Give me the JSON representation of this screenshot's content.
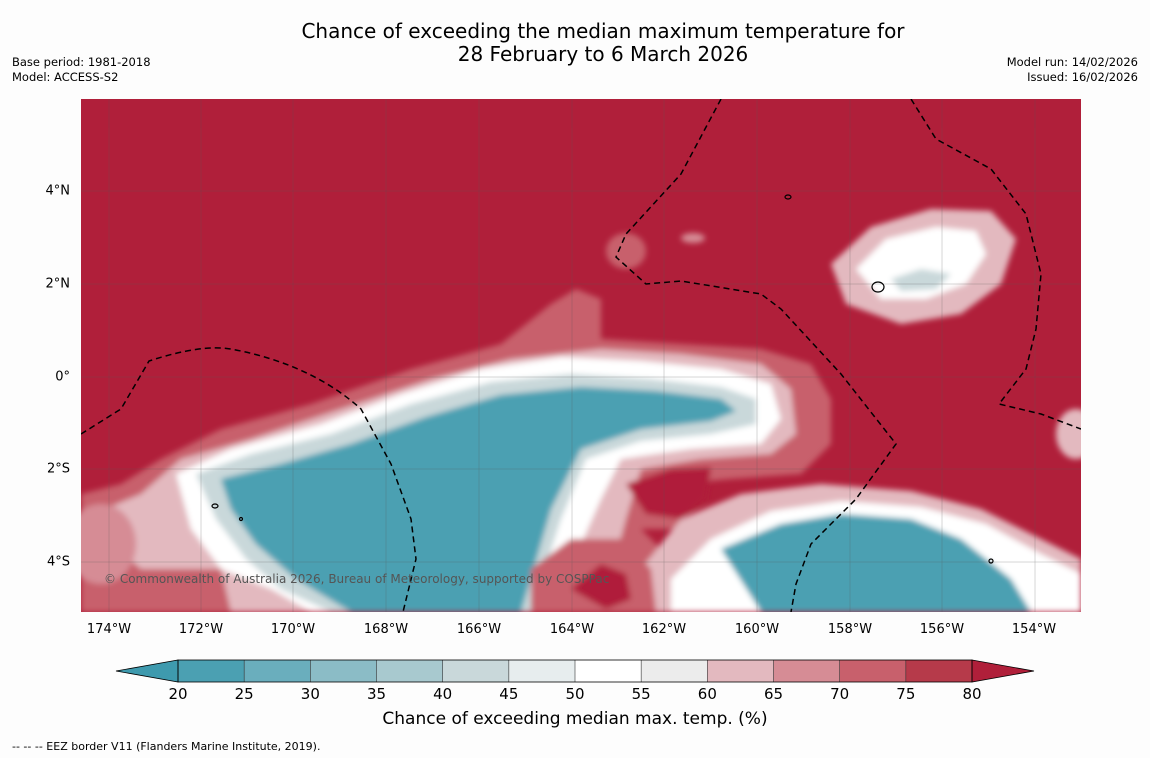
{
  "title_line1": "Chance of exceeding the median maximum temperature for",
  "title_line2": "28 February to 6 March 2026",
  "base_period": "Base period: 1981-2018",
  "model": "Model: ACCESS-S2",
  "model_run": "Model run: 14/02/2026",
  "issued": "Issued: 16/02/2026",
  "copyright": "© Commonwealth of Australia 2026, Bureau of Meteorology, supported by COSPPac",
  "lat_labels": [
    "4°N",
    "2°N",
    "0°",
    "2°S",
    "4°S"
  ],
  "lon_labels": [
    "174°W",
    "172°W",
    "170°W",
    "168°W",
    "166°W",
    "164°W",
    "162°W",
    "160°W",
    "158°W",
    "156°W",
    "154°W"
  ],
  "colorbar": {
    "ticks": [
      "20",
      "25",
      "30",
      "35",
      "40",
      "45",
      "50",
      "55",
      "60",
      "65",
      "70",
      "75",
      "80"
    ],
    "colors": [
      "#4ba0b2",
      "#6aaebd",
      "#8bbcc6",
      "#a8c9cf",
      "#c9d8da",
      "#e7edee",
      "#ffffff",
      "#ffffff",
      "#ececec",
      "#e3b9bf",
      "#d68c95",
      "#c8606c",
      "#b63a4a"
    ],
    "low_color": "#3e9aae",
    "high_color": "#b01f3a",
    "title": "Chance of exceeding median max. temp. (%)"
  },
  "footnote": "--  --  -- EEZ border V11 (Flanders Marine Institute, 2019)."
}
